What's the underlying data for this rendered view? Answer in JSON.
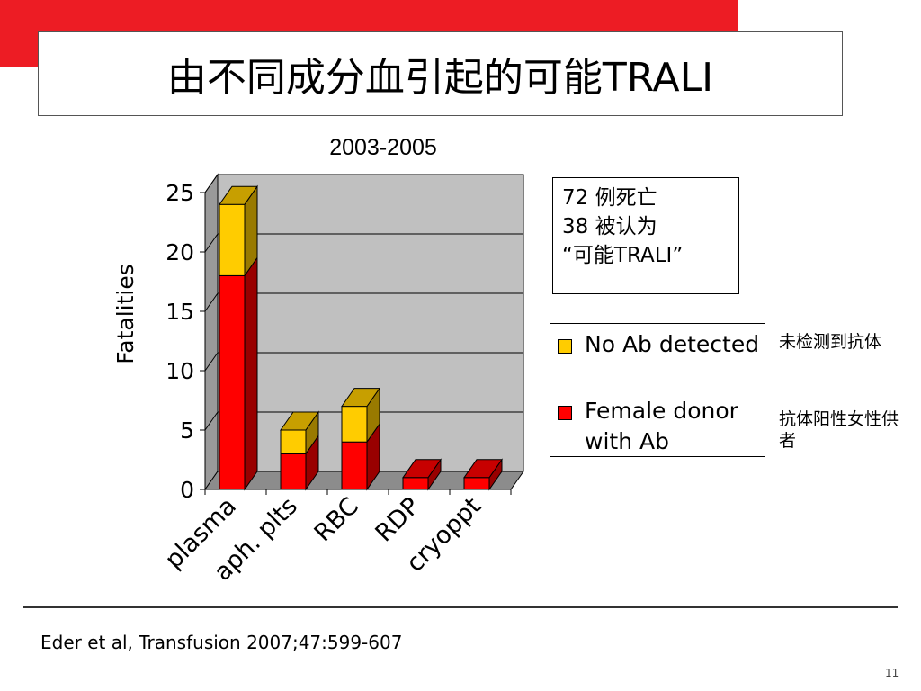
{
  "slide": {
    "title": "由不同成分血引起的可能TRALI",
    "citation": "Eder et al, Transfusion 2007;47:599-607",
    "page_number": "11",
    "colors": {
      "band": "#ed1c24"
    }
  },
  "info_box": {
    "lines": [
      "72 例死亡",
      "38 被认为",
      "“可能TRALI”"
    ]
  },
  "notes": {
    "no_ab": "未检测到抗体",
    "female": "抗体阳性女性供者"
  },
  "chart_data": {
    "type": "bar",
    "stacked": true,
    "title": "2003-2005",
    "ylabel": "Fatalities",
    "xlabel": "",
    "ylim": [
      0,
      25
    ],
    "yticks": [
      0,
      5,
      10,
      15,
      20,
      25
    ],
    "categories": [
      "plasma",
      "aph. plts",
      "RBC",
      "RDP",
      "cryoppt"
    ],
    "series": [
      {
        "name": "Female donor with Ab",
        "values": [
          18,
          3,
          4,
          1,
          1
        ],
        "color": "#ff0000"
      },
      {
        "name": "No Ab detected",
        "values": [
          6,
          2,
          3,
          0,
          0
        ],
        "color": "#ffcc00"
      }
    ],
    "legend_position": "right",
    "grid": true
  }
}
